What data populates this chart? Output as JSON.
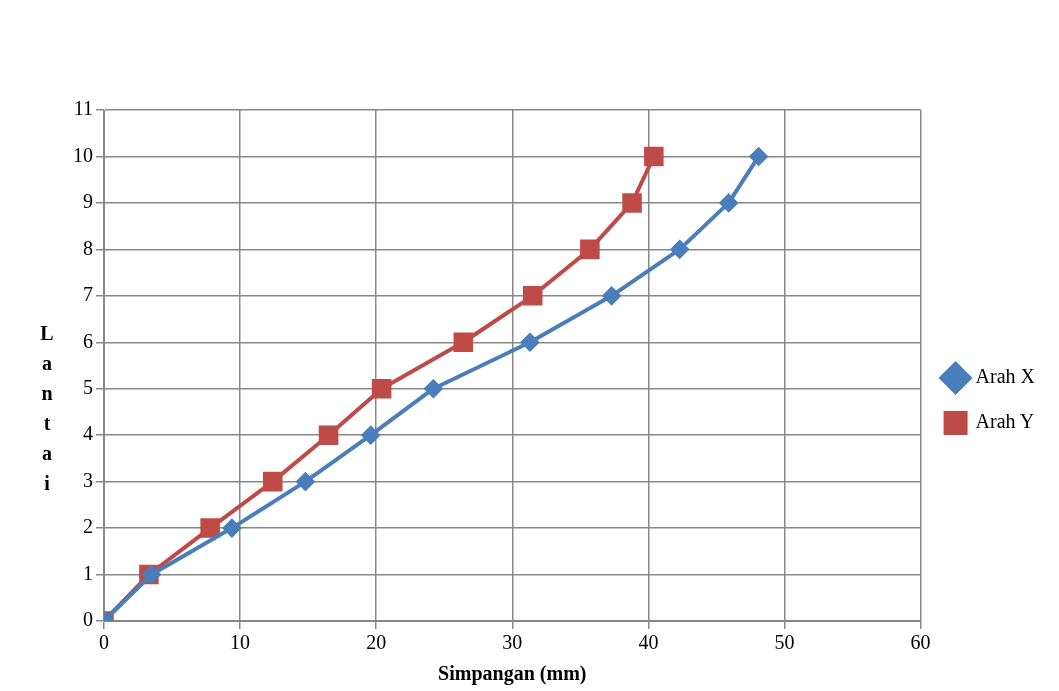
{
  "chart_data": {
    "type": "line",
    "xlabel": "Simpangan (mm)",
    "ylabel": "Lantai",
    "xlim": [
      0,
      60
    ],
    "xticks": [
      0,
      10,
      20,
      30,
      40,
      50,
      60
    ],
    "ylim": [
      0,
      11
    ],
    "yticks": [
      0,
      1,
      2,
      3,
      4,
      5,
      6,
      7,
      8,
      9,
      10,
      11
    ],
    "grid": true,
    "legend": "right",
    "line_style": "solid",
    "series": [
      {
        "name": "Arah X",
        "color": "#4a7ebb",
        "marker": "diamond",
        "x": [
          0,
          3.5,
          9.4,
          14.8,
          19.6,
          24.2,
          31.3,
          37.3,
          42.3,
          45.9,
          48.1
        ],
        "values": [
          0,
          1,
          2,
          3,
          4,
          5,
          6,
          7,
          8,
          9,
          10
        ]
      },
      {
        "name": "Arah Y",
        "color": "#be4b48",
        "marker": "square",
        "x": [
          0,
          3.3,
          7.8,
          12.4,
          16.5,
          20.4,
          26.4,
          31.5,
          35.7,
          38.8,
          40.4
        ],
        "values": [
          0,
          1,
          2,
          3,
          4,
          5,
          6,
          7,
          8,
          9,
          10
        ]
      }
    ]
  }
}
